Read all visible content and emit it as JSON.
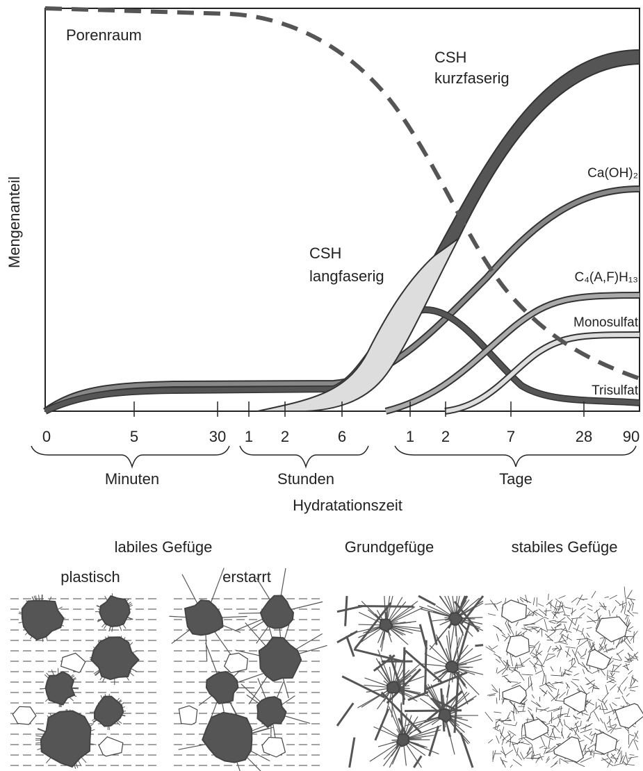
{
  "axis": {
    "y_label": "Mengenanteil",
    "x_label": "Hydratationszeit",
    "ticks": [
      "0",
      "5",
      "30",
      "1",
      "2",
      "6",
      "1",
      "2",
      "7",
      "28",
      "90"
    ],
    "groups": [
      "Minuten",
      "Stunden",
      "Tage"
    ]
  },
  "curves": {
    "porenraum": "Porenraum",
    "csh_kurz": [
      "CSH",
      "kurzfaserig"
    ],
    "csh_lang": [
      "CSH",
      "langfaserig"
    ],
    "caoh2": "Ca(OH)₂",
    "c4afh13": "C₄(A,F)H₁₃",
    "monosulfat": "Monosulfat",
    "trisulfat": "Trisulfat"
  },
  "structure": {
    "labil": "labiles Gefüge",
    "plastisch": "plastisch",
    "erstarrt": "erstarrt",
    "grund": "Grundgefüge",
    "stabil": "stabiles Gefüge"
  }
}
